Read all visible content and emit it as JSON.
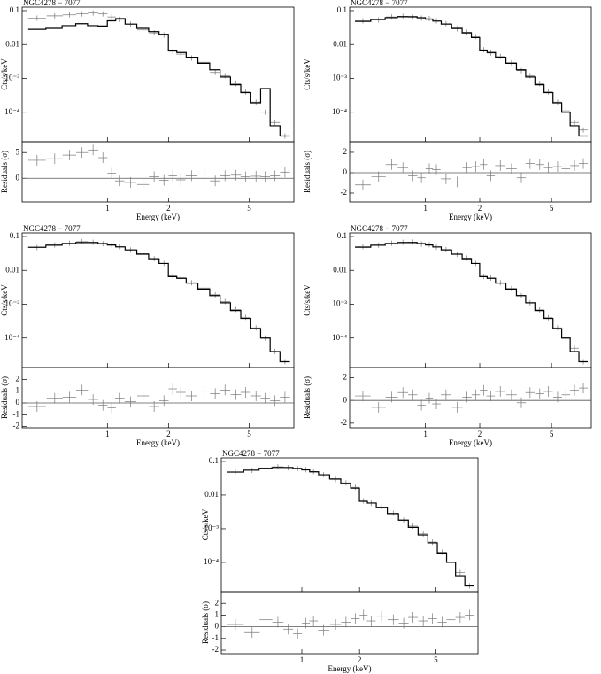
{
  "chart_data": [
    {
      "type": "spectrum",
      "title": "NGC4278 − 7077",
      "xlabel": "Energy (keV)",
      "xlim": [
        0.38,
        8.3
      ],
      "xticks": [
        1,
        2,
        5
      ],
      "xlog": true,
      "x": [
        0.45,
        0.55,
        0.65,
        0.75,
        0.85,
        0.95,
        1.05,
        1.15,
        1.3,
        1.5,
        1.7,
        1.9,
        2.1,
        2.3,
        2.6,
        3.0,
        3.4,
        3.8,
        4.3,
        4.8,
        5.4,
        6.0,
        6.7,
        7.5
      ],
      "spectrum": {
        "ylabel": "Cts/s/keV",
        "ylim": [
          1.35e-05,
          0.127
        ],
        "ylog": true,
        "yticks": [
          0.1,
          0.01,
          {
            "value": 0.001,
            "label": "10⁻³"
          },
          {
            "value": 0.0001,
            "label": "10⁻⁴"
          }
        ],
        "data_color": "#777777",
        "model_color": "#000000",
        "data": [
          0.06,
          0.07,
          0.075,
          0.08,
          0.085,
          0.08,
          0.065,
          0.055,
          0.04,
          0.027,
          0.022,
          0.019,
          0.0063,
          0.0052,
          0.004,
          0.003,
          0.0015,
          0.0012,
          0.0007,
          0.0004,
          0.0002,
          0.0001,
          5e-05,
          2e-05
        ],
        "model": [
          0.028,
          0.03,
          0.036,
          0.041,
          0.036,
          0.035,
          0.05,
          0.058,
          0.04,
          0.03,
          0.024,
          0.02,
          0.0065,
          0.0058,
          0.0042,
          0.0028,
          0.0018,
          0.0011,
          0.00065,
          0.00038,
          0.00019,
          0.0005,
          4e-05,
          2e-05
        ]
      },
      "residuals": {
        "ylabel": "Residuals (σ)",
        "ylim": [
          -4.6,
          7.1
        ],
        "yticks": [
          0,
          5
        ],
        "values": [
          3.5,
          3.8,
          4.5,
          5,
          5.5,
          4,
          1,
          -0.5,
          -0.8,
          -1.2,
          0.3,
          -0.4,
          0.5,
          -0.3,
          0.5,
          0.8,
          -0.5,
          0.5,
          0.6,
          0.3,
          0.4,
          0.3,
          0.5,
          1.2
        ]
      }
    },
    {
      "type": "spectrum",
      "title": "NGC4278 − 7077",
      "xlabel": "Energy (keV)",
      "xlim": [
        0.38,
        8.3
      ],
      "xticks": [
        1,
        2,
        5
      ],
      "xlog": true,
      "x": [
        0.45,
        0.55,
        0.65,
        0.75,
        0.85,
        0.95,
        1.05,
        1.15,
        1.3,
        1.5,
        1.7,
        1.9,
        2.1,
        2.3,
        2.6,
        3.0,
        3.4,
        3.8,
        4.3,
        4.8,
        5.4,
        6.0,
        6.7,
        7.5
      ],
      "spectrum": {
        "ylabel": "Cts/s/keV",
        "ylim": [
          1.35e-05,
          0.127
        ],
        "ylog": true,
        "yticks": [
          0.1,
          0.01,
          {
            "value": 0.001,
            "label": "10⁻³"
          },
          {
            "value": 0.0001,
            "label": "10⁻⁴"
          }
        ],
        "data_color": "#777777",
        "model_color": "#000000",
        "data": [
          0.05,
          0.053,
          0.065,
          0.068,
          0.064,
          0.06,
          0.058,
          0.05,
          0.041,
          0.029,
          0.023,
          0.017,
          0.007,
          0.0056,
          0.0044,
          0.0029,
          0.0017,
          0.0012,
          0.0007,
          0.0004,
          0.0002,
          0.00011,
          5e-05,
          3e-05
        ],
        "model": [
          0.048,
          0.055,
          0.062,
          0.066,
          0.066,
          0.062,
          0.056,
          0.049,
          0.04,
          0.03,
          0.022,
          0.016,
          0.0065,
          0.0058,
          0.0042,
          0.0028,
          0.0018,
          0.0011,
          0.00065,
          0.00038,
          0.00019,
          0.0001,
          4e-05,
          2e-05
        ]
      },
      "residuals": {
        "ylabel": "Residuals (σ)",
        "ylim": [
          -2.87,
          3.04
        ],
        "yticks": [
          -2,
          0,
          2
        ],
        "values": [
          -1.2,
          -0.4,
          0.8,
          0.5,
          -0.3,
          -0.5,
          0.4,
          0.3,
          -0.6,
          -0.9,
          0.5,
          0.6,
          0.8,
          -0.3,
          0.7,
          0.4,
          -0.5,
          0.9,
          0.8,
          0.5,
          0.6,
          0.4,
          0.7,
          0.9
        ]
      }
    },
    {
      "type": "spectrum",
      "title": "NGC4278 − 7077",
      "xlabel": "Energy (keV)",
      "xlim": [
        0.38,
        8.3
      ],
      "xticks": [
        1,
        2,
        5
      ],
      "xlog": true,
      "x": [
        0.45,
        0.55,
        0.65,
        0.75,
        0.85,
        0.95,
        1.05,
        1.15,
        1.3,
        1.5,
        1.7,
        1.9,
        2.1,
        2.3,
        2.6,
        3.0,
        3.4,
        3.8,
        4.3,
        4.8,
        5.4,
        6.0,
        6.7,
        7.5
      ],
      "spectrum": {
        "ylabel": "Cts/s/keV",
        "ylim": [
          1.35e-05,
          0.127
        ],
        "ylog": true,
        "yticks": [
          0.1,
          0.01,
          {
            "value": 0.001,
            "label": "10⁻³"
          },
          {
            "value": 0.0001,
            "label": "10⁻⁴"
          }
        ],
        "data_color": "#777777",
        "model_color": "#000000",
        "data": [
          0.047,
          0.056,
          0.063,
          0.07,
          0.067,
          0.061,
          0.055,
          0.05,
          0.04,
          0.031,
          0.022,
          0.016,
          0.0068,
          0.006,
          0.0043,
          0.003,
          0.0019,
          0.0012,
          0.0007,
          0.00041,
          0.0002,
          0.0001,
          4e-05,
          2e-05
        ],
        "model": [
          0.048,
          0.055,
          0.062,
          0.066,
          0.066,
          0.062,
          0.056,
          0.049,
          0.04,
          0.03,
          0.022,
          0.016,
          0.0065,
          0.0058,
          0.0042,
          0.0028,
          0.0018,
          0.0011,
          0.00065,
          0.00038,
          0.00019,
          0.0001,
          4e-05,
          2e-05
        ]
      },
      "residuals": {
        "ylabel": "Residuals (σ)",
        "ylim": [
          -2.1,
          3.0
        ],
        "yticks": [
          -2,
          -1,
          0,
          1,
          2
        ],
        "values": [
          -0.3,
          0.4,
          0.5,
          1.1,
          0.3,
          -0.2,
          -0.4,
          0.4,
          0.1,
          0.6,
          -0.3,
          0.2,
          1.2,
          0.9,
          0.6,
          1.0,
          0.8,
          1.1,
          0.7,
          0.9,
          0.6,
          0.4,
          0.2,
          0.5
        ]
      }
    },
    {
      "type": "spectrum",
      "title": "NGC4278 − 7077",
      "xlabel": "Energy (keV)",
      "xlim": [
        0.38,
        8.3
      ],
      "xticks": [
        1,
        2,
        5
      ],
      "xlog": true,
      "x": [
        0.45,
        0.55,
        0.65,
        0.75,
        0.85,
        0.95,
        1.05,
        1.15,
        1.3,
        1.5,
        1.7,
        1.9,
        2.1,
        2.3,
        2.6,
        3.0,
        3.4,
        3.8,
        4.3,
        4.8,
        5.4,
        6.0,
        6.7,
        7.5
      ],
      "spectrum": {
        "ylabel": "Cts/s/keV",
        "ylim": [
          1.35e-05,
          0.127
        ],
        "ylog": true,
        "yticks": [
          0.1,
          0.01,
          {
            "value": 0.001,
            "label": "10⁻³"
          },
          {
            "value": 0.0001,
            "label": "10⁻⁴"
          }
        ],
        "data_color": "#777777",
        "model_color": "#000000",
        "data": [
          0.05,
          0.055,
          0.063,
          0.067,
          0.068,
          0.06,
          0.057,
          0.048,
          0.041,
          0.03,
          0.023,
          0.016,
          0.0066,
          0.0059,
          0.0043,
          0.0029,
          0.0018,
          0.0011,
          0.00068,
          0.0004,
          0.0002,
          0.0001,
          5e-05,
          2e-05
        ],
        "model": [
          0.048,
          0.055,
          0.062,
          0.066,
          0.066,
          0.062,
          0.056,
          0.049,
          0.04,
          0.03,
          0.022,
          0.016,
          0.0065,
          0.0058,
          0.0042,
          0.0028,
          0.0018,
          0.0011,
          0.00065,
          0.00038,
          0.00019,
          0.0001,
          4e-05,
          2e-05
        ]
      },
      "residuals": {
        "ylabel": "Residuals (σ)",
        "ylim": [
          -2.4,
          2.9
        ],
        "yticks": [
          -2,
          0,
          2
        ],
        "values": [
          0.4,
          -0.6,
          0.3,
          0.7,
          0.5,
          -0.4,
          0.2,
          -0.3,
          0.5,
          -0.6,
          0.3,
          0.5,
          0.9,
          0.4,
          0.8,
          0.5,
          -0.2,
          0.7,
          0.6,
          0.8,
          0.3,
          0.5,
          0.9,
          1.1
        ]
      }
    },
    {
      "type": "spectrum",
      "title": "NGC4278 − 7077",
      "xlabel": "Energy (keV)",
      "xlim": [
        0.38,
        8.3
      ],
      "xticks": [
        1,
        2,
        5
      ],
      "xlog": true,
      "x": [
        0.45,
        0.55,
        0.65,
        0.75,
        0.85,
        0.95,
        1.05,
        1.15,
        1.3,
        1.5,
        1.7,
        1.9,
        2.1,
        2.3,
        2.6,
        3.0,
        3.4,
        3.8,
        4.3,
        4.8,
        5.4,
        6.0,
        6.7,
        7.5
      ],
      "spectrum": {
        "ylabel": "Cts/s/keV",
        "ylim": [
          1.35e-05,
          0.127
        ],
        "ylog": true,
        "yticks": [
          0.1,
          0.01,
          {
            "value": 0.001,
            "label": "10⁻³"
          },
          {
            "value": 0.0001,
            "label": "10⁻⁴"
          }
        ],
        "data_color": "#777777",
        "model_color": "#000000",
        "data": [
          0.049,
          0.054,
          0.064,
          0.069,
          0.065,
          0.061,
          0.057,
          0.05,
          0.04,
          0.029,
          0.023,
          0.017,
          0.0067,
          0.0057,
          0.0044,
          0.0029,
          0.0018,
          0.0012,
          0.0007,
          0.0004,
          0.0002,
          0.0001,
          5e-05,
          2e-05
        ],
        "model": [
          0.048,
          0.055,
          0.062,
          0.066,
          0.066,
          0.062,
          0.056,
          0.049,
          0.04,
          0.03,
          0.022,
          0.016,
          0.0065,
          0.0058,
          0.0042,
          0.0028,
          0.0018,
          0.0011,
          0.00065,
          0.00038,
          0.00019,
          0.0001,
          4e-05,
          2e-05
        ]
      },
      "residuals": {
        "ylabel": "Residuals (σ)",
        "ylim": [
          -2.3,
          3.0
        ],
        "yticks": [
          -2,
          -1,
          0,
          1,
          2
        ],
        "values": [
          0.2,
          -0.5,
          0.6,
          0.4,
          -0.2,
          -0.6,
          0.3,
          0.5,
          -0.3,
          0.2,
          0.4,
          0.7,
          1.0,
          0.5,
          0.9,
          0.6,
          0.3,
          0.8,
          0.5,
          0.7,
          0.4,
          0.6,
          0.8,
          1.0
        ]
      }
    }
  ]
}
